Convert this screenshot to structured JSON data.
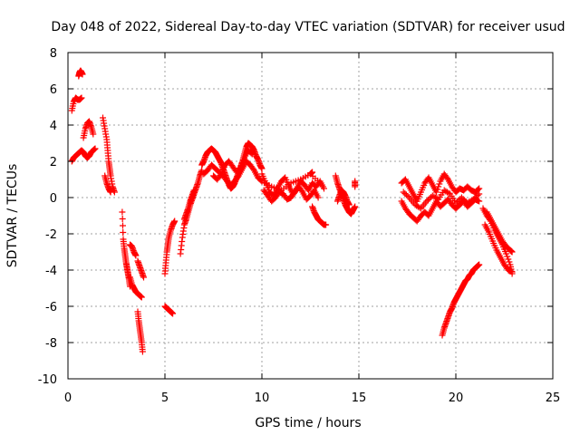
{
  "chart_data": {
    "type": "scatter",
    "title": "Day 048 of 2022, Sidereal Day-to-day VTEC variation (SDTVAR) for receiver usud",
    "xlabel": "GPS time / hours",
    "ylabel": "SDTVAR / TECUs",
    "xlim": [
      0,
      25
    ],
    "ylim": [
      -10,
      8
    ],
    "xticks": [
      0,
      5,
      10,
      15,
      20,
      25
    ],
    "yticks": [
      -10,
      -8,
      -6,
      -4,
      -2,
      0,
      2,
      4,
      6,
      8
    ],
    "xtick_labels": [
      "0",
      "5",
      "10",
      "15",
      "20",
      "25"
    ],
    "ytick_labels": [
      "-10",
      "-8",
      "-6",
      "-4",
      "-2",
      "0",
      "2",
      "4",
      "6",
      "8"
    ],
    "grid": true,
    "marker": "+",
    "color": "#ff0000",
    "series": [
      {
        "name": "a1",
        "x": [
          0.2,
          0.3,
          0.4,
          0.5,
          0.6,
          0.7
        ],
        "y": [
          4.8,
          5.3,
          5.5,
          5.4,
          5.4,
          5.5
        ]
      },
      {
        "name": "a2",
        "x": [
          0.55,
          0.6,
          0.65,
          0.7,
          0.75
        ],
        "y": [
          6.7,
          6.9,
          7.0,
          6.9,
          6.8
        ]
      },
      {
        "name": "a3",
        "x": [
          0.2,
          0.3,
          0.4,
          0.5,
          0.6,
          0.7,
          0.8,
          0.9,
          1.0,
          1.1,
          1.2,
          1.3,
          1.4
        ],
        "y": [
          2.0,
          2.2,
          2.3,
          2.4,
          2.5,
          2.6,
          2.5,
          2.3,
          2.2,
          2.3,
          2.5,
          2.6,
          2.7
        ]
      },
      {
        "name": "a4",
        "x": [
          0.8,
          0.9,
          1.0,
          1.1,
          1.2,
          1.3
        ],
        "y": [
          3.3,
          3.8,
          4.1,
          4.2,
          3.9,
          3.5
        ]
      },
      {
        "name": "a5",
        "x": [
          1.8,
          1.9,
          2.0,
          2.05,
          2.1,
          2.15,
          2.2,
          2.3,
          2.4
        ],
        "y": [
          4.4,
          3.8,
          3.2,
          2.6,
          2.0,
          1.6,
          1.2,
          0.6,
          0.3
        ]
      },
      {
        "name": "a6",
        "x": [
          1.9,
          2.0,
          2.1,
          2.2
        ],
        "y": [
          1.2,
          0.8,
          0.5,
          0.3
        ]
      },
      {
        "name": "b1",
        "x": [
          2.8,
          2.85,
          2.9,
          2.95,
          3.0,
          3.05,
          3.1,
          3.15,
          3.2
        ],
        "y": [
          -0.8,
          -2.3,
          -2.8,
          -3.2,
          -3.6,
          -3.9,
          -4.2,
          -4.5,
          -4.9
        ]
      },
      {
        "name": "b2",
        "x": [
          3.2,
          3.3,
          3.4,
          3.5
        ],
        "y": [
          -2.6,
          -2.7,
          -3.0,
          -3.2
        ]
      },
      {
        "name": "b3",
        "x": [
          3.2,
          3.3,
          3.4,
          3.5,
          3.6,
          3.7,
          3.8
        ],
        "y": [
          -4.4,
          -4.8,
          -5.0,
          -5.2,
          -5.3,
          -5.4,
          -5.5
        ]
      },
      {
        "name": "b4",
        "x": [
          3.6,
          3.65,
          3.7,
          3.75,
          3.8,
          3.85
        ],
        "y": [
          -6.3,
          -6.8,
          -7.2,
          -7.6,
          -8.0,
          -8.5
        ]
      },
      {
        "name": "b5",
        "x": [
          3.6,
          3.7,
          3.8,
          3.9
        ],
        "y": [
          -3.5,
          -3.8,
          -4.1,
          -4.4
        ]
      },
      {
        "name": "c1",
        "x": [
          5.0,
          5.05,
          5.1,
          5.15,
          5.2,
          5.3,
          5.4,
          5.5
        ],
        "y": [
          -4.2,
          -3.6,
          -3.0,
          -2.6,
          -2.2,
          -1.8,
          -1.5,
          -1.3
        ]
      },
      {
        "name": "c2",
        "x": [
          5.0,
          5.1,
          5.2,
          5.3,
          5.4
        ],
        "y": [
          -6.0,
          -6.1,
          -6.2,
          -6.3,
          -6.4
        ]
      },
      {
        "name": "c3",
        "x": [
          5.8,
          5.9,
          6.0,
          6.1,
          6.2,
          6.3,
          6.4,
          6.5,
          6.6,
          6.7,
          6.8,
          6.9
        ],
        "y": [
          -3.1,
          -2.2,
          -1.5,
          -1.2,
          -0.8,
          -0.4,
          -0.1,
          0.2,
          0.5,
          0.8,
          1.2,
          1.5
        ]
      },
      {
        "name": "c4",
        "x": [
          6.0,
          6.1,
          6.2,
          6.3,
          6.4,
          6.5
        ],
        "y": [
          -1.2,
          -0.9,
          -0.6,
          -0.2,
          0.1,
          0.4
        ]
      },
      {
        "name": "d1",
        "x": [
          6.9,
          7.0,
          7.1,
          7.2,
          7.3,
          7.4,
          7.5,
          7.6,
          7.7,
          7.8,
          7.9,
          8.0,
          8.1,
          8.2,
          8.3,
          8.4,
          8.5,
          8.6,
          8.7,
          8.8,
          8.9,
          9.0,
          9.1,
          9.2,
          9.3,
          9.4,
          9.5,
          9.6,
          9.7,
          9.8,
          9.9,
          10.0
        ],
        "y": [
          1.8,
          2.0,
          2.3,
          2.5,
          2.6,
          2.7,
          2.6,
          2.5,
          2.3,
          2.1,
          1.9,
          1.6,
          1.3,
          1.0,
          0.7,
          0.5,
          0.6,
          0.8,
          1.1,
          1.4,
          1.7,
          2.0,
          2.4,
          2.8,
          3.0,
          2.9,
          2.8,
          2.6,
          2.3,
          2.1,
          1.8,
          1.6
        ]
      },
      {
        "name": "d2",
        "x": [
          7.0,
          7.2,
          7.4,
          7.6,
          7.8,
          8.0,
          8.2,
          8.4,
          8.6,
          8.8,
          9.0,
          9.2,
          9.4,
          9.6,
          9.8,
          10.0
        ],
        "y": [
          1.3,
          1.5,
          1.8,
          1.6,
          1.4,
          1.2,
          0.9,
          0.7,
          0.9,
          1.2,
          1.6,
          2.0,
          1.8,
          1.5,
          1.1,
          0.9
        ]
      },
      {
        "name": "d3",
        "x": [
          7.5,
          7.7,
          7.9,
          8.1,
          8.3,
          8.5,
          8.7,
          8.9,
          9.1,
          9.3,
          9.5
        ],
        "y": [
          1.2,
          1.0,
          1.3,
          1.8,
          2.0,
          1.7,
          1.4,
          1.6,
          2.2,
          2.6,
          2.4
        ]
      },
      {
        "name": "e1",
        "x": [
          10.0,
          10.2,
          10.4,
          10.6,
          10.8,
          11.0,
          11.2,
          11.4,
          11.6,
          11.8,
          12.0,
          12.2,
          12.4,
          12.6,
          12.8,
          13.0,
          13.2
        ],
        "y": [
          1.3,
          0.8,
          0.3,
          0.1,
          0.5,
          0.9,
          1.1,
          0.6,
          0.2,
          0.5,
          0.9,
          0.7,
          0.4,
          0.8,
          0.6,
          0.9,
          0.5
        ]
      },
      {
        "name": "e2",
        "x": [
          10.1,
          10.3,
          10.5,
          10.7,
          10.9,
          11.1,
          11.3,
          11.5,
          11.7,
          11.9,
          12.1,
          12.3,
          12.5,
          12.7,
          12.9
        ],
        "y": [
          0.4,
          0.1,
          -0.2,
          0.0,
          0.3,
          0.2,
          -0.1,
          0.0,
          0.3,
          0.6,
          0.3,
          -0.1,
          0.1,
          0.4,
          0.0
        ]
      },
      {
        "name": "e3",
        "x": [
          10.0,
          10.5,
          11.0,
          11.5,
          12.0,
          12.5,
          13.0
        ],
        "y": [
          0.9,
          0.6,
          0.4,
          0.8,
          1.0,
          1.3,
          0.8
        ]
      },
      {
        "name": "e4",
        "x": [
          12.6,
          12.7,
          12.8,
          12.9,
          13.0,
          13.1,
          13.2,
          13.3
        ],
        "y": [
          -0.5,
          -0.8,
          -1.0,
          -1.2,
          -1.3,
          -1.4,
          -1.5,
          -1.5
        ]
      },
      {
        "name": "e5",
        "x": [
          12.5,
          12.6
        ],
        "y": [
          1.3,
          1.4
        ]
      },
      {
        "name": "f1",
        "x": [
          13.8,
          13.9,
          14.0,
          14.1,
          14.2,
          14.3,
          14.4,
          14.5,
          14.6,
          14.7,
          14.8
        ],
        "y": [
          1.2,
          0.8,
          0.5,
          0.2,
          -0.1,
          -0.4,
          -0.6,
          -0.8,
          -0.9,
          -0.7,
          -0.5
        ]
      },
      {
        "name": "f2",
        "x": [
          13.9,
          14.0,
          14.1,
          14.2,
          14.3,
          14.4,
          14.5
        ],
        "y": [
          -0.2,
          0.1,
          0.4,
          0.3,
          0.1,
          -0.2,
          -0.4
        ]
      },
      {
        "name": "f3",
        "x": [
          14.8,
          14.8
        ],
        "y": [
          0.6,
          0.9
        ]
      },
      {
        "name": "g1",
        "x": [
          17.2,
          17.4,
          17.6,
          17.8,
          18.0,
          18.2,
          18.4,
          18.6,
          18.8,
          19.0,
          19.2,
          19.4,
          19.6,
          19.8,
          20.0,
          20.2,
          20.4,
          20.6,
          20.8,
          21.0,
          21.2
        ],
        "y": [
          0.8,
          1.0,
          0.6,
          0.2,
          -0.2,
          0.3,
          0.8,
          1.1,
          0.7,
          0.3,
          0.9,
          1.3,
          1.0,
          0.6,
          0.3,
          0.5,
          0.4,
          0.6,
          0.4,
          0.3,
          0.5
        ]
      },
      {
        "name": "g2",
        "x": [
          17.2,
          17.4,
          17.6,
          17.8,
          18.0,
          18.2,
          18.4,
          18.6,
          18.8,
          19.0,
          19.2,
          19.4,
          19.6,
          19.8,
          20.0,
          20.2,
          20.4,
          20.6,
          20.8,
          21.0,
          21.2
        ],
        "y": [
          -0.2,
          -0.6,
          -0.9,
          -1.1,
          -1.3,
          -1.0,
          -0.8,
          -1.0,
          -0.6,
          -0.2,
          -0.5,
          -0.3,
          -0.1,
          -0.4,
          -0.6,
          -0.4,
          -0.2,
          -0.5,
          -0.3,
          -0.1,
          -0.2
        ]
      },
      {
        "name": "g3",
        "x": [
          17.3,
          17.6,
          17.9,
          18.2,
          18.5,
          18.8,
          19.1,
          19.4,
          19.7,
          20.0,
          20.3,
          20.6,
          20.9,
          21.2
        ],
        "y": [
          0.3,
          0.0,
          -0.4,
          -0.6,
          -0.2,
          0.1,
          -0.1,
          0.4,
          0.2,
          -0.3,
          0.0,
          -0.3,
          -0.1,
          0.2
        ]
      },
      {
        "name": "h1",
        "x": [
          19.3,
          19.4,
          19.5,
          19.6,
          19.7,
          19.8,
          19.9,
          20.0,
          20.1,
          20.2,
          20.3,
          20.4,
          20.5,
          20.6,
          20.7,
          20.8,
          20.9,
          21.0,
          21.1,
          21.2
        ],
        "y": [
          -7.6,
          -7.2,
          -6.9,
          -6.6,
          -6.3,
          -6.1,
          -5.8,
          -5.6,
          -5.4,
          -5.2,
          -5.0,
          -4.8,
          -4.6,
          -4.5,
          -4.3,
          -4.2,
          -4.0,
          -3.9,
          -3.8,
          -3.7
        ]
      },
      {
        "name": "i1",
        "x": [
          21.4,
          21.6,
          21.8,
          22.0,
          22.2,
          22.4,
          22.6,
          22.8,
          22.9
        ],
        "y": [
          -0.6,
          -1.0,
          -1.3,
          -1.8,
          -2.2,
          -2.6,
          -3.1,
          -3.7,
          -4.2
        ]
      },
      {
        "name": "i2",
        "x": [
          21.5,
          21.7,
          21.9,
          22.1,
          22.3,
          22.5,
          22.7,
          22.9
        ],
        "y": [
          -1.5,
          -1.9,
          -2.4,
          -2.9,
          -3.3,
          -3.7,
          -4.0,
          -4.1
        ]
      },
      {
        "name": "i3",
        "x": [
          21.6,
          21.8,
          22.0,
          22.2,
          22.4,
          22.6,
          22.8,
          22.9
        ],
        "y": [
          -0.8,
          -1.2,
          -1.6,
          -2.0,
          -2.4,
          -2.7,
          -2.9,
          -3.0
        ]
      }
    ]
  }
}
